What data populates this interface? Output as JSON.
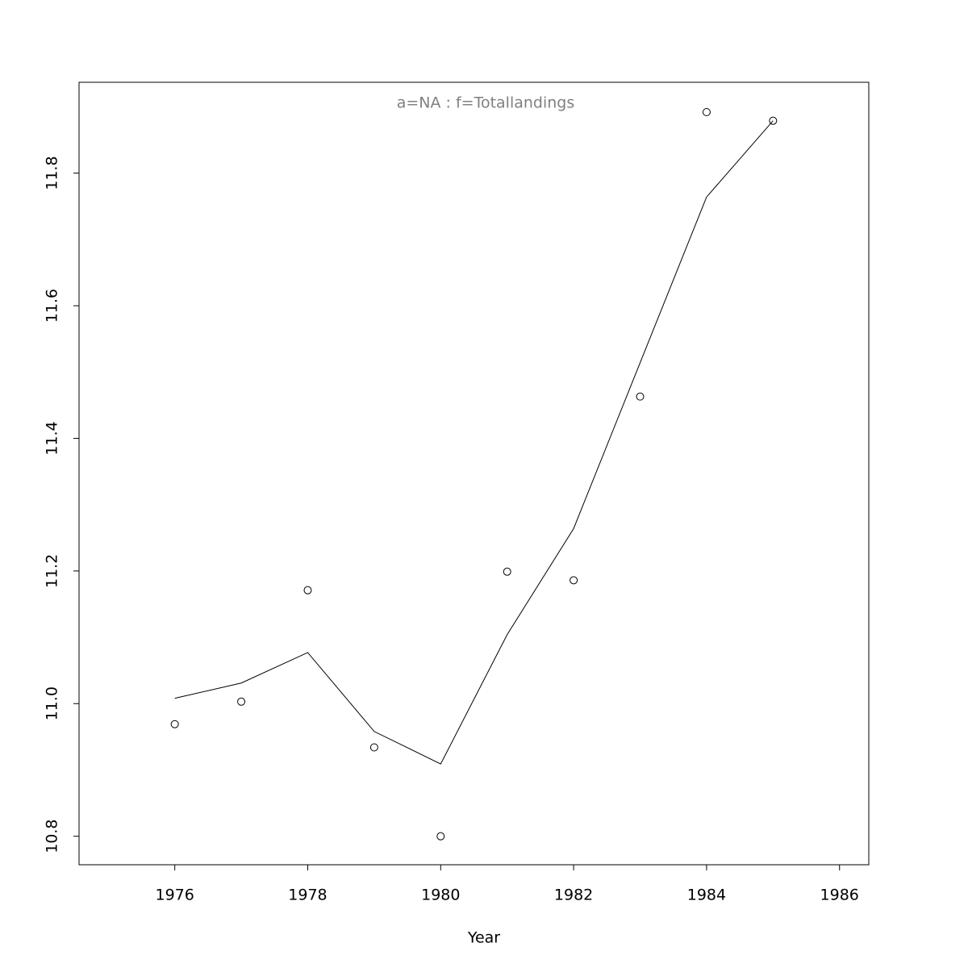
{
  "chart_data": {
    "type": "line",
    "title": "a=NA  :  f=Totallandings",
    "x_label": "Year",
    "x": [
      1976,
      1977,
      1978,
      1979,
      1980,
      1981,
      1982,
      1983,
      1984,
      1985
    ],
    "series": [
      {
        "type": "line",
        "color": "#000000",
        "values": [
          11.008,
          11.031,
          11.077,
          10.958,
          10.909,
          11.104,
          11.264,
          11.514,
          11.764,
          11.879
        ]
      },
      {
        "type": "points",
        "color": "#000000",
        "values": [
          10.969,
          11.003,
          11.171,
          10.934,
          10.8,
          11.199,
          11.186,
          11.463,
          11.892,
          11.879
        ]
      }
    ],
    "xlim": [
      1974.56,
      1986.44
    ],
    "ylim": [
      10.757,
      11.937
    ],
    "xticks": [
      1976,
      1978,
      1980,
      1982,
      1984,
      1986
    ],
    "yticks": [
      10.8,
      {
        "value": 11,
        "label": "11.0"
      },
      11.2,
      11.4,
      11.6,
      11.8
    ],
    "grid": false
  }
}
